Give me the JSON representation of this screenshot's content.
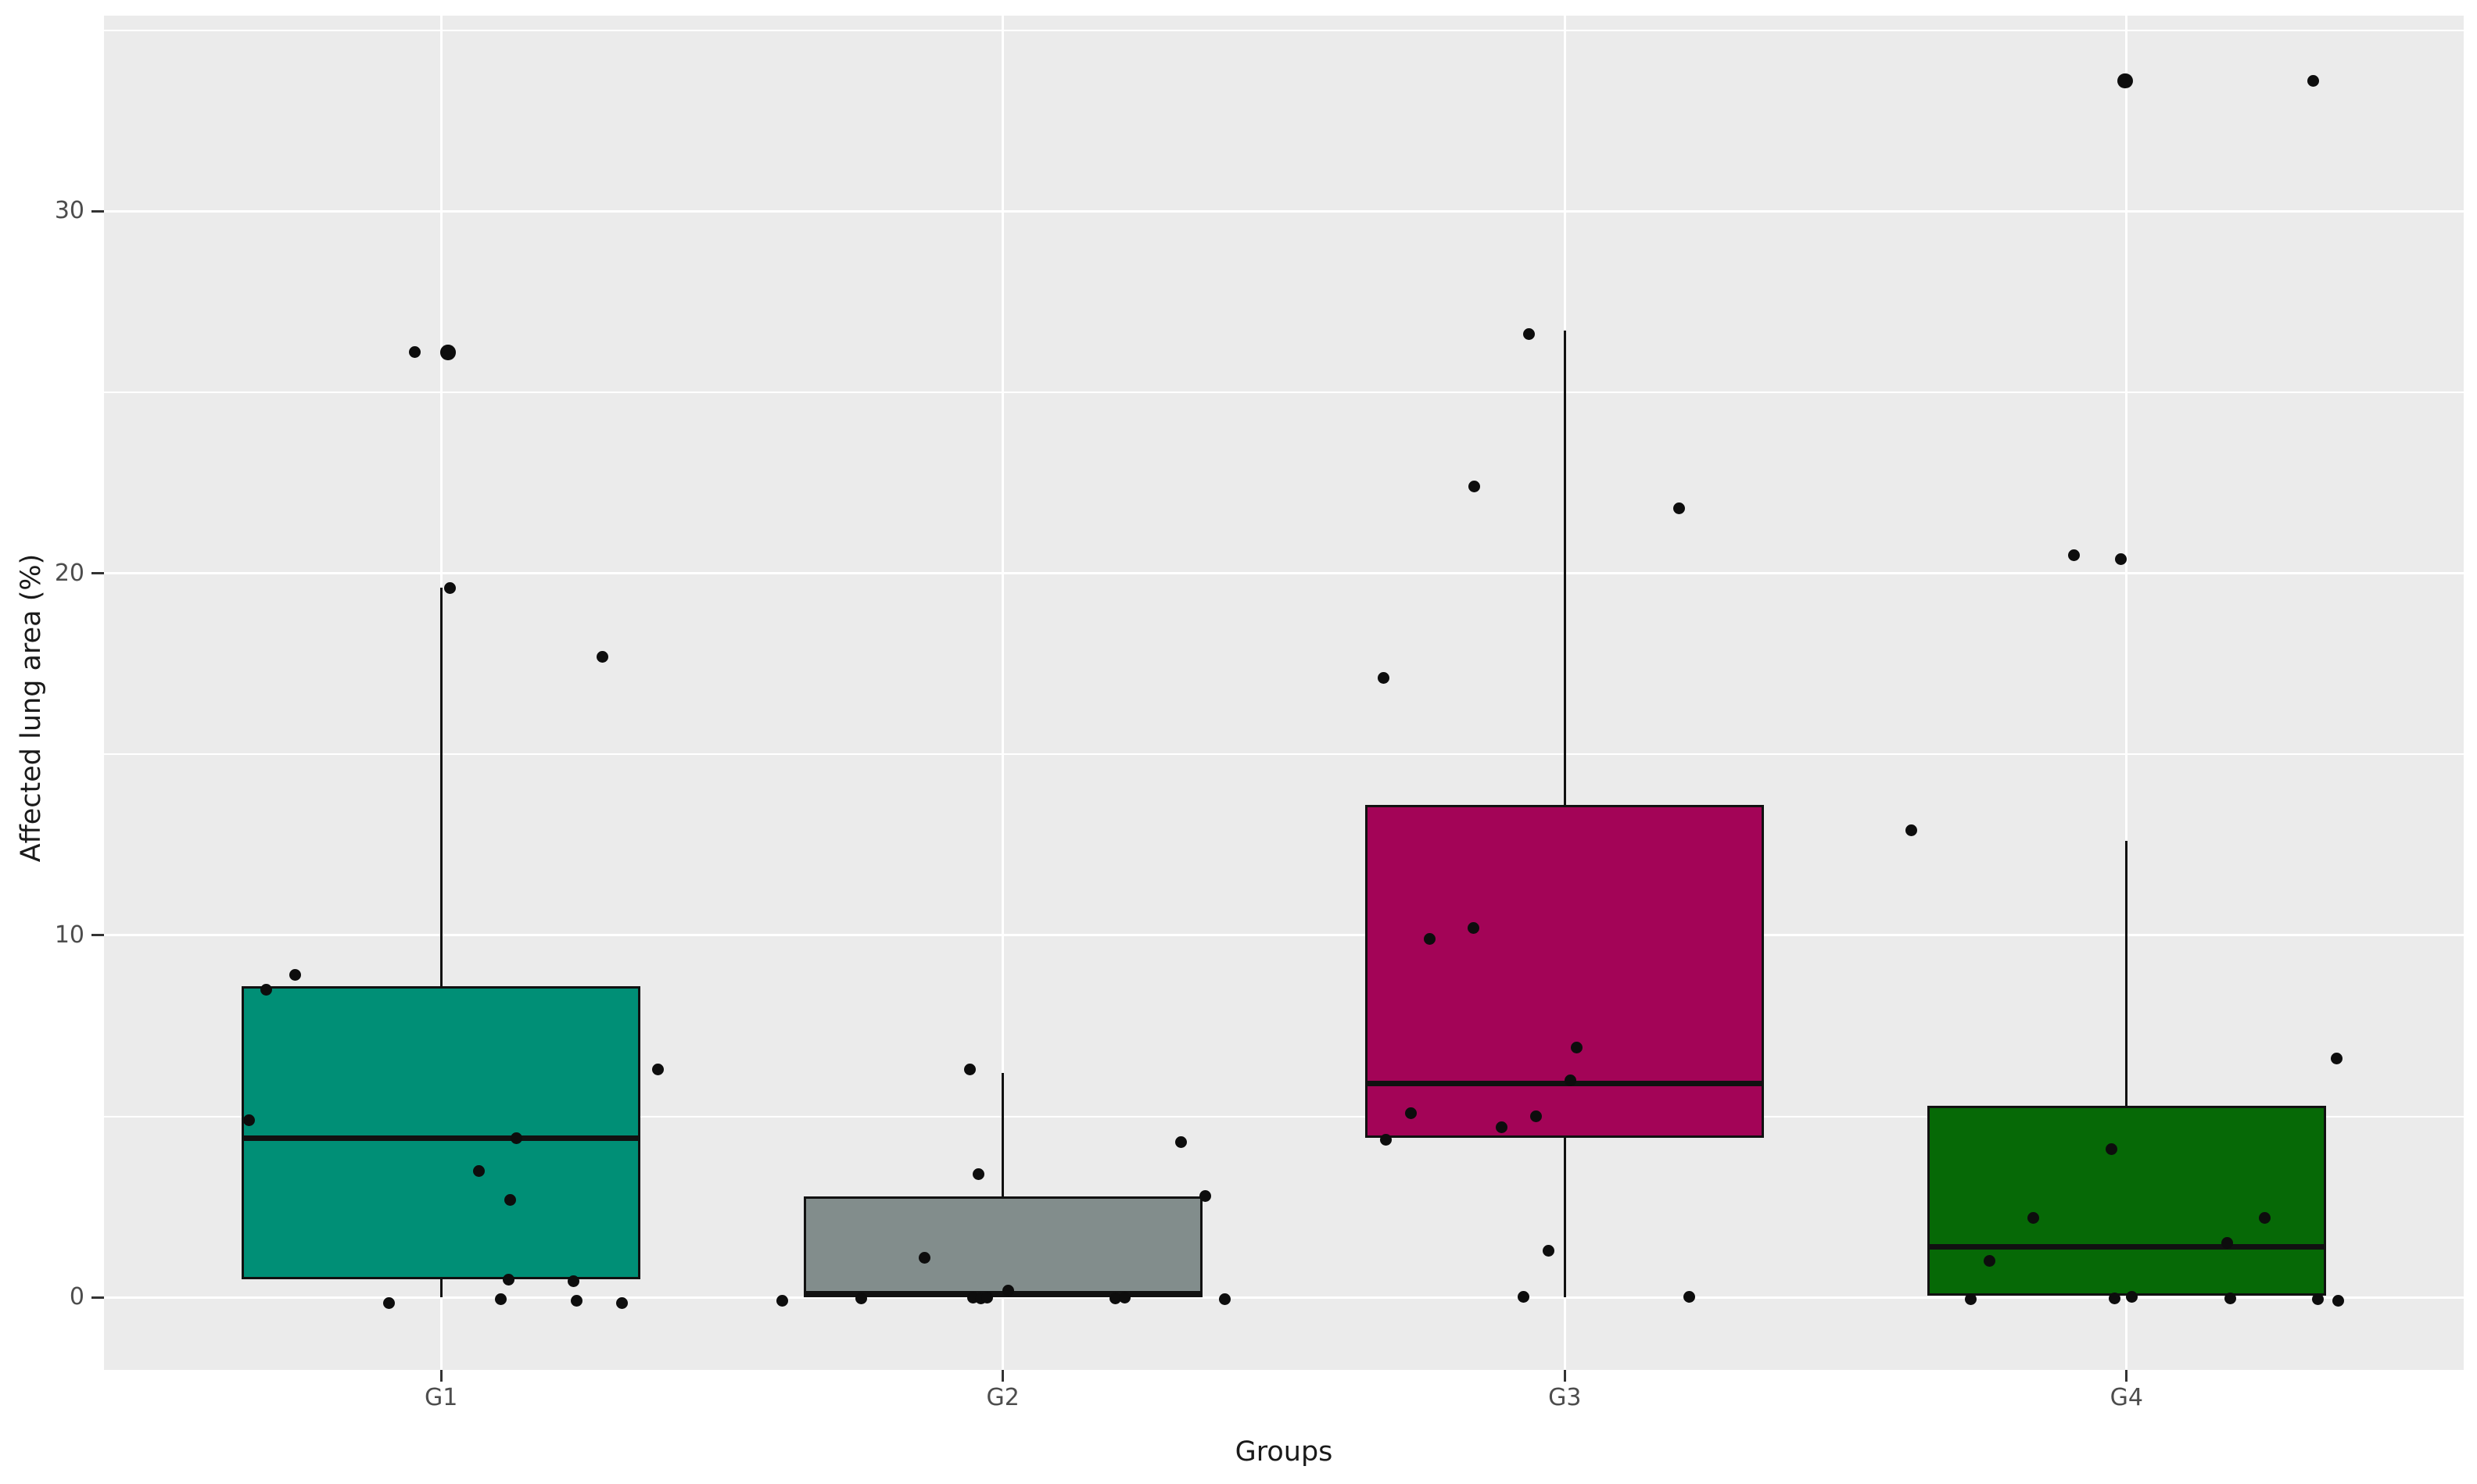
{
  "chart_data": {
    "type": "boxplot",
    "title": "",
    "xlabel": "Groups",
    "ylabel": "Affected lung area (%)",
    "categories": [
      "G1",
      "G2",
      "G3",
      "G4"
    ],
    "y_ticks": [
      0,
      10,
      20,
      30
    ],
    "y_minor_ticks": [
      5,
      15,
      25,
      35
    ],
    "ylim": [
      -2.0,
      35.4
    ],
    "x_units_total": 4.2,
    "x_center_offset": 0.6,
    "grid": "white major+minor horizontal, white major vertical, on gray panel",
    "legend_position": "none",
    "panel_bg": "#EBEBEB",
    "grid_color": "#FFFFFF",
    "tick_color": "#333333",
    "tick_label_color": "#4D4D4D",
    "axis_title_color": "#1A1A1A",
    "point_color": "#0D0D0D",
    "box_border_color": "#111111",
    "series": [
      {
        "name": "G1",
        "fill": "#008F76",
        "q1": 0.5,
        "median": 4.4,
        "q3": 8.6,
        "whisker_low": 0.0,
        "whisker_high": 19.6,
        "points": [
          [
            530,
            26.1
          ],
          [
            573,
            26.1,
            1.3
          ],
          [
            575,
            19.6
          ],
          [
            770,
            17.7
          ],
          [
            841,
            6.3
          ],
          [
            377,
            8.9
          ],
          [
            340,
            8.5
          ],
          [
            318,
            4.9
          ],
          [
            660,
            4.4
          ],
          [
            612,
            3.5
          ],
          [
            652,
            2.7
          ],
          [
            650,
            0.5
          ],
          [
            733,
            0.45
          ],
          [
            497,
            -0.15
          ],
          [
            640,
            -0.05
          ],
          [
            737,
            -0.1
          ],
          [
            795,
            -0.15
          ]
        ]
      },
      {
        "name": "G2",
        "fill": "#828D8C",
        "q1": 0.0,
        "median": 0.1,
        "q3": 2.8,
        "whisker_low": 0.0,
        "whisker_high": 6.2,
        "points": [
          [
            1240,
            6.3
          ],
          [
            1251,
            3.4
          ],
          [
            1510,
            4.3
          ],
          [
            1541,
            2.8
          ],
          [
            1182,
            1.1
          ],
          [
            1289,
            0.2
          ],
          [
            1000,
            -0.1
          ],
          [
            1101,
            -0.02
          ],
          [
            1244,
            0.0
          ],
          [
            1254,
            -0.03
          ],
          [
            1262,
            0.0
          ],
          [
            1426,
            -0.02
          ],
          [
            1438,
            0.0
          ],
          [
            1566,
            -0.05
          ]
        ]
      },
      {
        "name": "G3",
        "fill": "#A30457",
        "q1": 4.4,
        "median": 5.9,
        "q3": 13.6,
        "whisker_low": 0.0,
        "whisker_high": 26.7,
        "points": [
          [
            1955,
            26.6
          ],
          [
            1885,
            22.4
          ],
          [
            2147,
            21.8
          ],
          [
            1769,
            17.1
          ],
          [
            1884,
            10.2
          ],
          [
            1828,
            9.9
          ],
          [
            2016,
            6.9
          ],
          [
            2008,
            6.0
          ],
          [
            1804,
            5.1
          ],
          [
            1964,
            5.0
          ],
          [
            1920,
            4.7
          ],
          [
            1772,
            4.35
          ],
          [
            1980,
            1.3
          ],
          [
            1948,
            0.02
          ],
          [
            2160,
            0.02
          ]
        ]
      },
      {
        "name": "G4",
        "fill": "#066906",
        "q1": 0.05,
        "median": 1.4,
        "q3": 5.3,
        "whisker_low": 0.05,
        "whisker_high": 12.6,
        "points": [
          [
            2718,
            33.6,
            1.3
          ],
          [
            2958,
            33.6
          ],
          [
            2652,
            20.5
          ],
          [
            2712,
            20.4
          ],
          [
            2444,
            12.9
          ],
          [
            2988,
            6.6
          ],
          [
            2700,
            4.1
          ],
          [
            2600,
            2.2
          ],
          [
            2896,
            2.2
          ],
          [
            2848,
            1.5
          ],
          [
            2544,
            1.0
          ],
          [
            2520,
            -0.05
          ],
          [
            2704,
            -0.02
          ],
          [
            2726,
            0.02
          ],
          [
            2852,
            -0.02
          ],
          [
            2964,
            -0.05
          ],
          [
            2990,
            -0.08
          ]
        ]
      }
    ]
  }
}
